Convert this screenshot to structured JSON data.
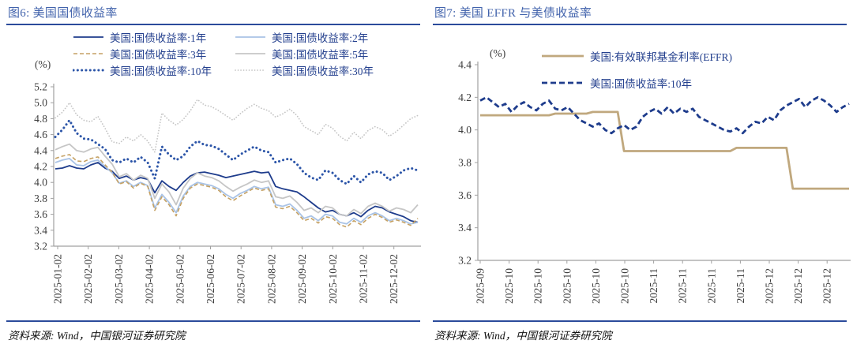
{
  "figures": [
    {
      "title": "图6: 美国国债收益率",
      "source": "资料来源: Wind，中国银河证券研究院"
    },
    {
      "title": "图7: 美国 EFFR 与美债收益率",
      "source": "资料来源: Wind，中国银河证券研究院"
    }
  ],
  "colors": {
    "title_blue": "#4263AC",
    "rule_blue": "#2B4B9B",
    "legend_text_blue": "#24408E",
    "axis_gray": "#A0A0A0",
    "navy_line": "#1E3C8C",
    "light_blue_line": "#A9C3E6",
    "tan_dashed_line": "#C5A163",
    "gray_line": "#C6C6C6",
    "dotted_blue": "#2C55A8",
    "dotted_light_gray": "#C4C4C4",
    "effr_tan": "#C0A87E"
  },
  "chart_data": [
    {
      "type": "line",
      "title": "图6: 美国国债收益率",
      "unit": "(%)",
      "xlabel": "",
      "ylabel": "",
      "ylim": [
        3.2,
        5.2
      ],
      "ytick_step": 0.2,
      "grid": false,
      "legend_position": "top",
      "x_tick_labels": [
        "2025-01-02",
        "2025-02-02",
        "2025-03-02",
        "2025-04-02",
        "2025-05-02",
        "2025-06-02",
        "2025-07-02",
        "2025-08-02",
        "2025-09-02",
        "2025-10-02",
        "2025-11-02",
        "2025-12-02"
      ],
      "series": [
        {
          "name": "美国:国债收益率:1年",
          "style": "solid",
          "color": "#1E3C8C",
          "width": 1.8,
          "values": [
            4.17,
            4.18,
            4.21,
            4.18,
            4.17,
            4.22,
            4.25,
            4.18,
            4.14,
            4.05,
            4.08,
            4.03,
            4.06,
            4.04,
            3.87,
            4.02,
            3.95,
            3.9,
            4.0,
            4.08,
            4.12,
            4.13,
            4.11,
            4.09,
            4.06,
            4.08,
            4.1,
            4.12,
            4.14,
            4.12,
            4.13,
            3.95,
            3.92,
            3.9,
            3.88,
            3.82,
            3.75,
            3.68,
            3.63,
            3.65,
            3.6,
            3.58,
            3.62,
            3.57,
            3.65,
            3.7,
            3.68,
            3.63,
            3.6,
            3.57,
            3.52,
            3.5
          ]
        },
        {
          "name": "美国:国债收益率:2年",
          "style": "solid",
          "color": "#A9C3E6",
          "width": 1.8,
          "values": [
            4.25,
            4.28,
            4.3,
            4.22,
            4.21,
            4.26,
            4.28,
            4.2,
            4.12,
            3.99,
            4.02,
            3.95,
            4.0,
            3.96,
            3.68,
            3.85,
            3.75,
            3.62,
            3.83,
            3.95,
            4.0,
            3.98,
            3.96,
            3.92,
            3.85,
            3.8,
            3.86,
            3.9,
            3.95,
            3.92,
            3.94,
            3.72,
            3.7,
            3.73,
            3.65,
            3.55,
            3.58,
            3.52,
            3.6,
            3.58,
            3.5,
            3.48,
            3.55,
            3.5,
            3.58,
            3.62,
            3.58,
            3.52,
            3.55,
            3.52,
            3.48,
            3.5
          ]
        },
        {
          "name": "美国:国债收益率:3年",
          "style": "dashed",
          "color": "#C5A163",
          "width": 1.6,
          "values": [
            4.3,
            4.33,
            4.35,
            4.27,
            4.26,
            4.3,
            4.32,
            4.22,
            4.13,
            3.98,
            4.01,
            3.93,
            3.99,
            3.95,
            3.65,
            3.82,
            3.72,
            3.58,
            3.8,
            3.93,
            3.98,
            3.96,
            3.94,
            3.9,
            3.82,
            3.77,
            3.83,
            3.88,
            3.93,
            3.9,
            3.92,
            3.69,
            3.67,
            3.7,
            3.62,
            3.52,
            3.55,
            3.49,
            3.57,
            3.55,
            3.47,
            3.44,
            3.52,
            3.47,
            3.55,
            3.6,
            3.56,
            3.5,
            3.53,
            3.5,
            3.46,
            3.55
          ]
        },
        {
          "name": "美国:国债收益率:5年",
          "style": "solid",
          "color": "#C6C6C6",
          "width": 1.8,
          "values": [
            4.41,
            4.45,
            4.48,
            4.4,
            4.38,
            4.42,
            4.44,
            4.33,
            4.23,
            4.07,
            4.11,
            4.03,
            4.09,
            4.05,
            3.8,
            3.98,
            3.88,
            3.72,
            3.93,
            4.05,
            4.12,
            4.08,
            4.06,
            4.02,
            3.95,
            3.89,
            3.94,
            3.98,
            4.03,
            4.0,
            4.02,
            3.82,
            3.8,
            3.83,
            3.75,
            3.65,
            3.68,
            3.62,
            3.7,
            3.68,
            3.6,
            3.58,
            3.66,
            3.61,
            3.7,
            3.74,
            3.7,
            3.64,
            3.68,
            3.66,
            3.62,
            3.72
          ]
        },
        {
          "name": "美国:国债收益率:10年",
          "style": "dotted",
          "color": "#2C55A8",
          "width": 3,
          "values": [
            4.57,
            4.66,
            4.78,
            4.62,
            4.55,
            4.54,
            4.48,
            4.42,
            4.28,
            4.25,
            4.3,
            4.25,
            4.32,
            4.25,
            4.05,
            4.45,
            4.35,
            4.28,
            4.33,
            4.45,
            4.52,
            4.47,
            4.46,
            4.42,
            4.35,
            4.28,
            4.35,
            4.4,
            4.45,
            4.4,
            4.38,
            4.25,
            4.28,
            4.3,
            4.23,
            4.12,
            4.06,
            4.03,
            4.15,
            4.12,
            4.03,
            3.98,
            4.08,
            4.0,
            4.1,
            4.14,
            4.12,
            4.03,
            4.08,
            4.15,
            4.18,
            4.15
          ]
        },
        {
          "name": "美国:国债收益率:30年",
          "style": "dotted-fine",
          "color": "#C4C4C4",
          "width": 1.7,
          "values": [
            4.81,
            4.88,
            5.0,
            4.85,
            4.78,
            4.76,
            4.83,
            4.68,
            4.51,
            4.49,
            4.57,
            4.52,
            4.6,
            4.52,
            4.38,
            4.87,
            4.78,
            4.72,
            4.79,
            4.9,
            5.04,
            4.97,
            4.95,
            4.9,
            4.84,
            4.78,
            4.86,
            4.93,
            4.98,
            4.93,
            4.9,
            4.82,
            4.86,
            4.92,
            4.84,
            4.7,
            4.65,
            4.6,
            4.73,
            4.68,
            4.58,
            4.52,
            4.63,
            4.55,
            4.65,
            4.7,
            4.66,
            4.58,
            4.64,
            4.72,
            4.8,
            4.84
          ]
        }
      ]
    },
    {
      "type": "line",
      "title": "图7: 美国 EFFR 与美债收益率",
      "unit": "(%)",
      "xlabel": "",
      "ylabel": "",
      "ylim": [
        3.2,
        4.4
      ],
      "ytick_step": 0.2,
      "grid": false,
      "legend_position": "top",
      "x_tick_labels": [
        "2025-09",
        "2025-10",
        "2025-10",
        "2025-10",
        "2025-10",
        "2025-10",
        "2025-11",
        "2025-11",
        "2025-11",
        "2025-11",
        "2025-12",
        "2025-12",
        "2025-12"
      ],
      "series": [
        {
          "name": "美国:有效联邦基金利率(EFFR)",
          "style": "solid",
          "color": "#C0A87E",
          "width": 2.8,
          "values": [
            4.09,
            4.09,
            4.09,
            4.09,
            4.09,
            4.09,
            4.09,
            4.09,
            4.09,
            4.09,
            4.09,
            4.09,
            4.1,
            4.1,
            4.1,
            4.1,
            4.1,
            4.1,
            4.11,
            4.11,
            4.11,
            4.11,
            4.11,
            3.87,
            3.87,
            3.87,
            3.87,
            3.87,
            3.87,
            3.87,
            3.87,
            3.87,
            3.87,
            3.87,
            3.87,
            3.87,
            3.87,
            3.87,
            3.87,
            3.87,
            3.87,
            3.89,
            3.89,
            3.89,
            3.89,
            3.89,
            3.89,
            3.89,
            3.89,
            3.89,
            3.64,
            3.64,
            3.64,
            3.64,
            3.64,
            3.64,
            3.64,
            3.64,
            3.64,
            3.64
          ]
        },
        {
          "name": "美国:国债收益率:10年",
          "style": "dashed-bold",
          "color": "#1E3C8C",
          "width": 2.8,
          "values": [
            4.18,
            4.2,
            4.17,
            4.14,
            4.16,
            4.11,
            4.15,
            4.17,
            4.14,
            4.12,
            4.16,
            4.18,
            4.13,
            4.12,
            4.14,
            4.1,
            4.06,
            4.04,
            4.02,
            4.04,
            4.0,
            3.98,
            4.01,
            4.03,
            4.0,
            4.02,
            4.08,
            4.11,
            4.13,
            4.1,
            4.14,
            4.1,
            4.13,
            4.11,
            4.13,
            4.08,
            4.06,
            4.04,
            4.02,
            4.0,
            3.99,
            4.01,
            3.98,
            4.02,
            4.05,
            4.04,
            4.08,
            4.06,
            4.12,
            4.15,
            4.17,
            4.19,
            4.14,
            4.18,
            4.2,
            4.18,
            4.15,
            4.11,
            4.14,
            4.16
          ]
        }
      ]
    }
  ]
}
